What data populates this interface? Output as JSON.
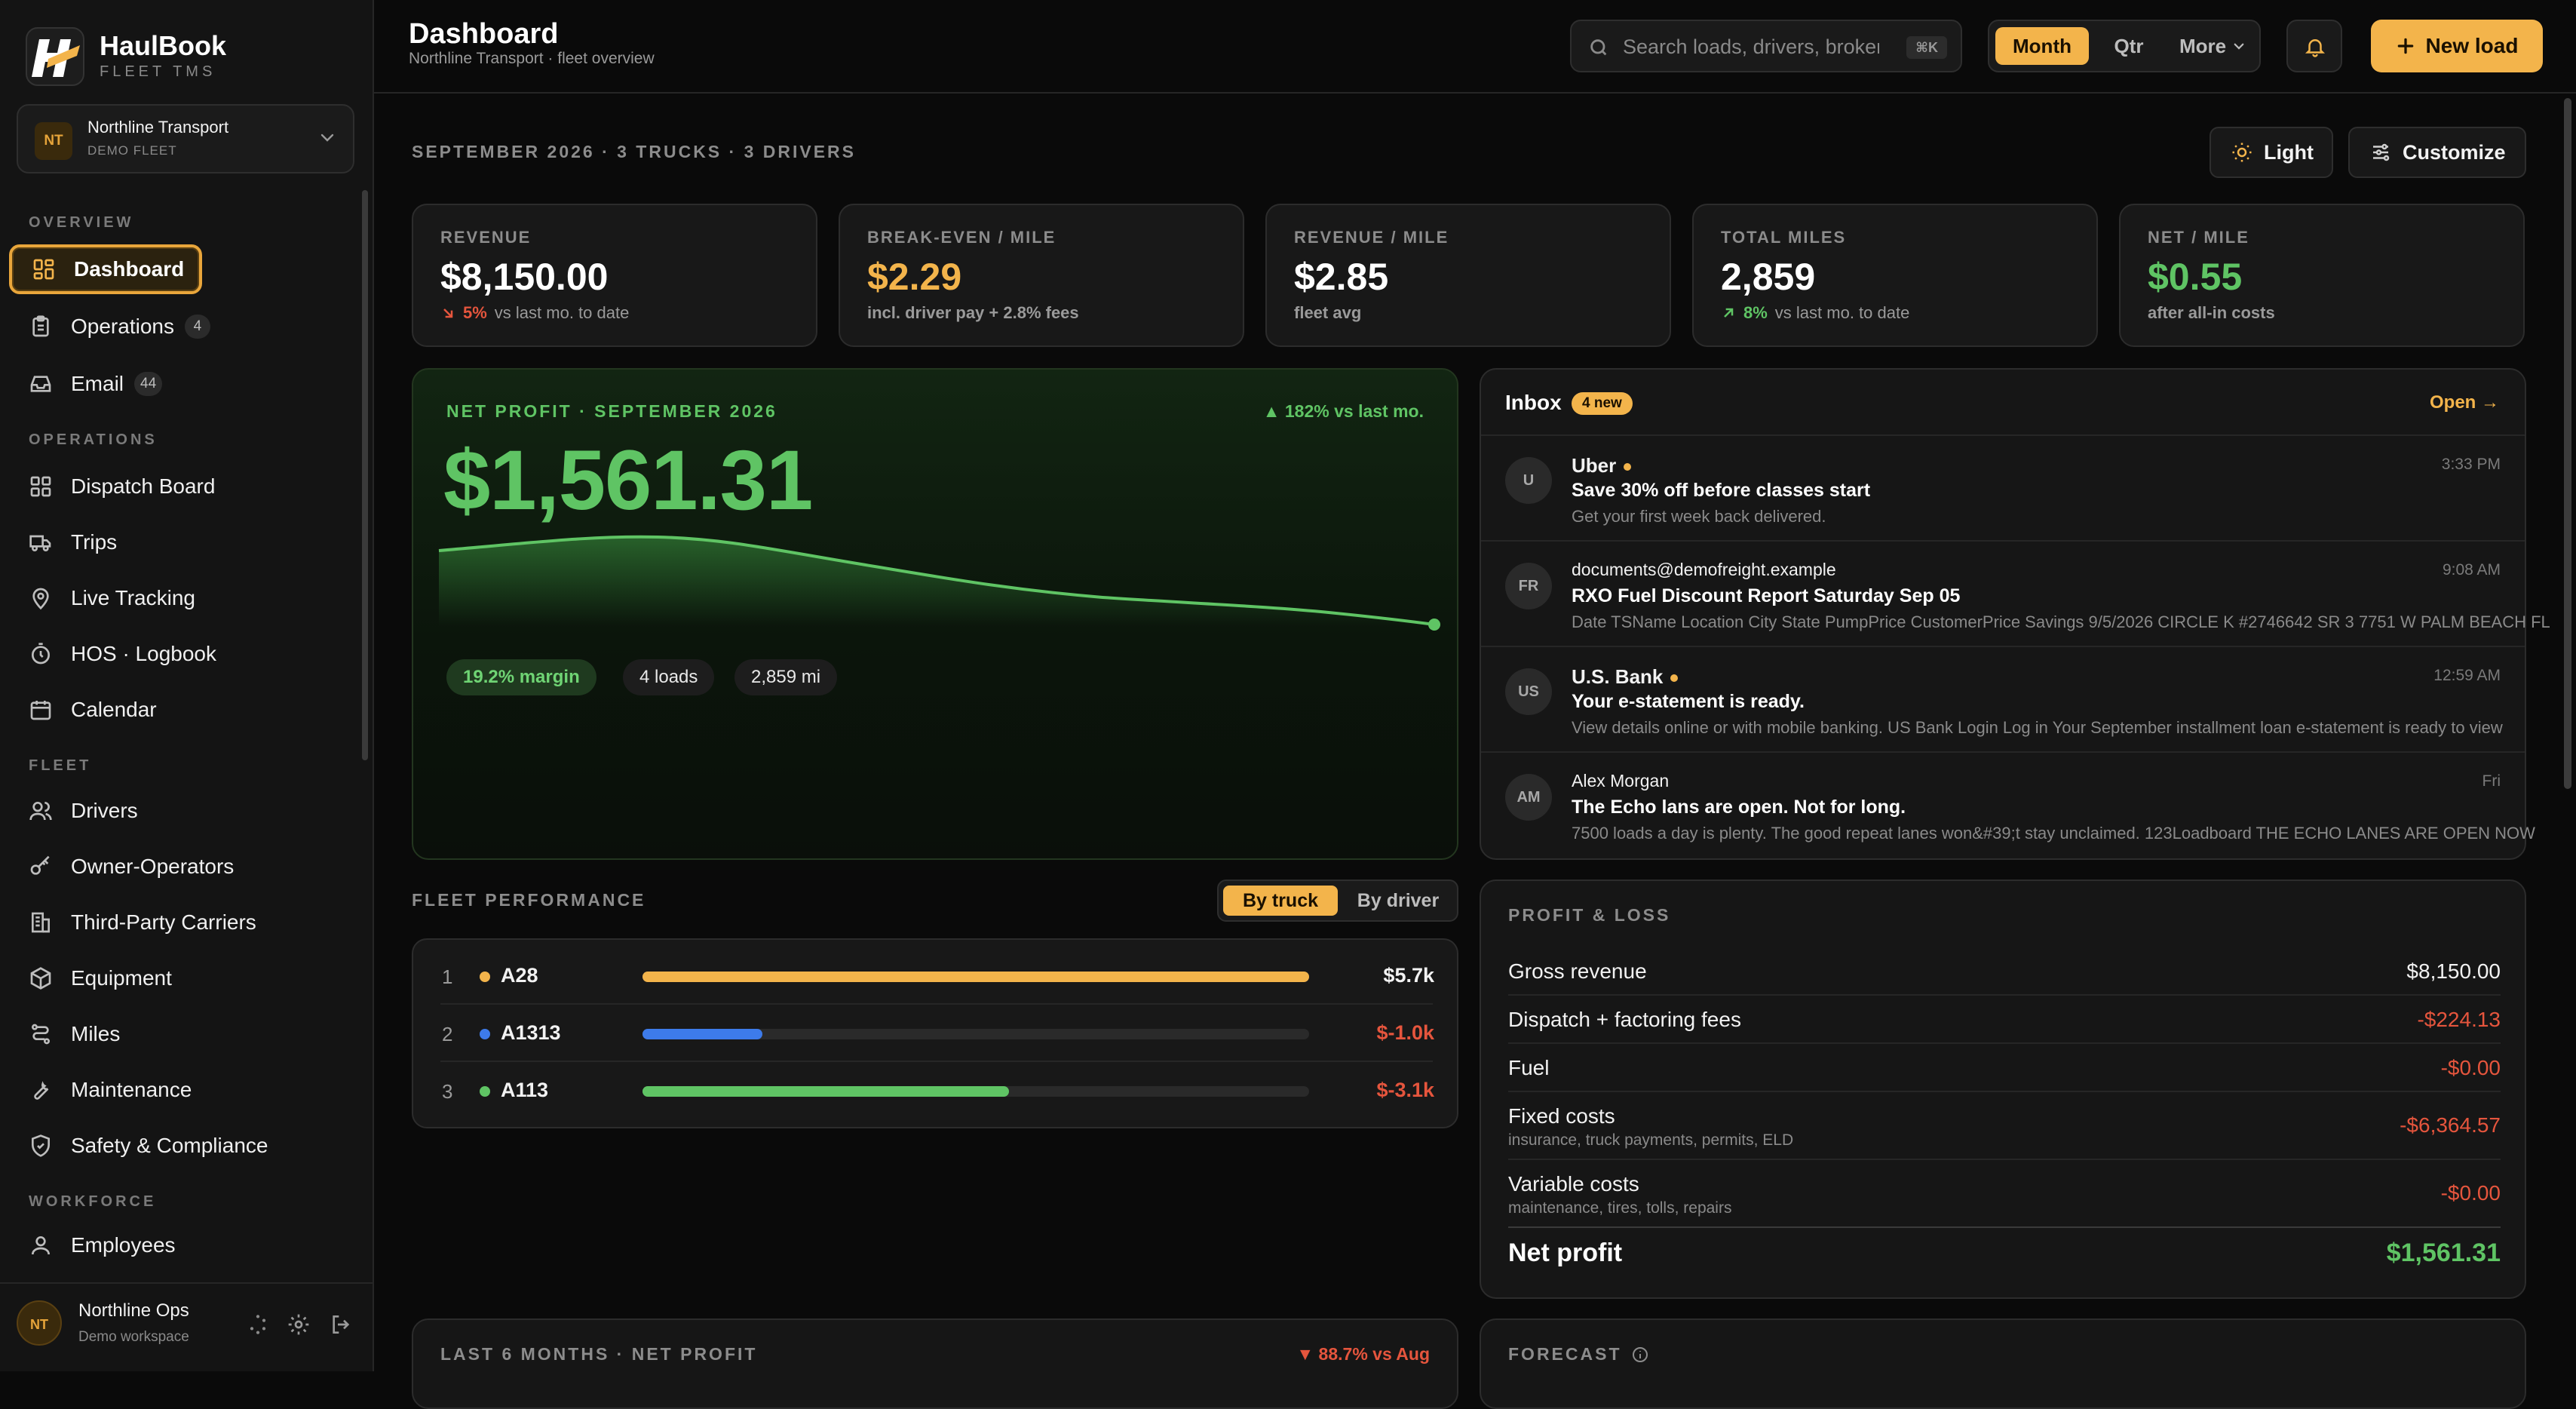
{
  "brand": {
    "name": "HaulBook",
    "sub": "FLEET TMS"
  },
  "org": {
    "initials": "NT",
    "name": "Northline Transport",
    "sub": "DEMO FLEET"
  },
  "sidebar": {
    "overview_label": "OVERVIEW",
    "operations_label": "OPERATIONS",
    "fleet_label": "FLEET",
    "workforce_label": "WORKFORCE",
    "overview": [
      {
        "label": "Dashboard",
        "icon": "grid-icon"
      },
      {
        "label": "Operations",
        "icon": "clipboard-icon",
        "count": "4"
      },
      {
        "label": "Email",
        "icon": "inbox-icon",
        "count": "44"
      }
    ],
    "operations": [
      {
        "label": "Dispatch Board",
        "icon": "grid-icon"
      },
      {
        "label": "Trips",
        "icon": "truck-icon"
      },
      {
        "label": "Live Tracking",
        "icon": "map-pin-icon"
      },
      {
        "label": "HOS · Logbook",
        "icon": "stopwatch-icon"
      },
      {
        "label": "Calendar",
        "icon": "calendar-icon"
      }
    ],
    "fleet": [
      {
        "label": "Drivers",
        "icon": "users-icon"
      },
      {
        "label": "Owner-Operators",
        "icon": "key-icon"
      },
      {
        "label": "Third-Party Carriers",
        "icon": "building-icon"
      },
      {
        "label": "Equipment",
        "icon": "box-icon"
      },
      {
        "label": "Miles",
        "icon": "route-icon"
      },
      {
        "label": "Maintenance",
        "icon": "wrench-icon"
      },
      {
        "label": "Safety & Compliance",
        "icon": "shield-icon"
      }
    ],
    "workforce": [
      {
        "label": "Employees",
        "icon": "user-icon"
      }
    ],
    "footer": {
      "initials": "NT",
      "name": "Northline Ops",
      "sub": "Demo workspace"
    }
  },
  "header": {
    "title": "Dashboard",
    "subtitle": "Northline Transport · fleet overview",
    "search_placeholder": "Search loads, drivers, brokers",
    "search_kbd": "⌘K",
    "periods": [
      "Month",
      "Qtr",
      "More"
    ],
    "new_load": "New load"
  },
  "main": {
    "period_caption": "SEPTEMBER 2026 · 3 TRUCKS · 3 DRIVERS",
    "theme_button": "Light",
    "customize_button": "Customize",
    "kpis": [
      {
        "label": "REVENUE",
        "value": "$8,150.00",
        "value_color": "#ffffff",
        "delta": "5%",
        "delta_dir": "down",
        "delta_color": "#e5553d",
        "note": "vs last mo. to date"
      },
      {
        "label": "BREAK-EVEN / MILE",
        "value": "$2.29",
        "value_color": "#f3b44b",
        "delta": "",
        "note": "incl. driver pay + 2.8% fees"
      },
      {
        "label": "REVENUE / MILE",
        "value": "$2.85",
        "value_color": "#ffffff",
        "delta": "",
        "note": "fleet avg"
      },
      {
        "label": "TOTAL MILES",
        "value": "2,859",
        "value_color": "#ffffff",
        "delta": "8%",
        "delta_dir": "up",
        "delta_color": "#5fc464",
        "note": "vs last mo. to date"
      },
      {
        "label": "NET / MILE",
        "value": "$0.55",
        "value_color": "#5fc464",
        "delta": "",
        "note": "after all-in costs"
      }
    ],
    "net_profit": {
      "caption": "NET PROFIT · SEPTEMBER 2026",
      "delta": "▲ 182% vs last mo.",
      "value": "$1,561.31",
      "margin": "19.2% margin",
      "loads": "4 loads",
      "miles": "2,859 mi"
    },
    "inbox": {
      "title": "Inbox",
      "badge": "4 new",
      "open": "Open →",
      "items": [
        {
          "initials": "U",
          "from": "Uber",
          "unread": true,
          "time": "3:33 PM",
          "subject": "Save 30% off before classes start",
          "preview": "Get your first week back delivered."
        },
        {
          "initials": "FR",
          "from": "documents@demofreight.example",
          "unread": false,
          "time": "9:08 AM",
          "subject": "RXO Fuel Discount Report Saturday Sep 05",
          "preview": "Date TSName Location City State PumpPrice CustomerPrice Savings 9/5/2026 CIRCLE K #2746642 SR 3 7751 W PALM BEACH FL"
        },
        {
          "initials": "US",
          "from": "U.S. Bank",
          "unread": true,
          "time": "12:59 AM",
          "subject": "Your e-statement is ready.",
          "preview": "View details online or with mobile banking. US Bank Login Log in Your September installment loan e-statement is ready to view"
        },
        {
          "initials": "AM",
          "from": "Alex Morgan",
          "unread": false,
          "time": "Fri",
          "subject": "The Echo lans are open. Not for long.",
          "preview": "7500 loads a day is plenty. The good repeat lanes won&#39;t stay unclaimed. 123Loadboard THE ECHO LANES ARE OPEN NOW"
        }
      ]
    },
    "fleet_performance": {
      "caption": "FLEET PERFORMANCE",
      "toggle": [
        "By truck",
        "By driver"
      ],
      "rows": [
        {
          "rank": "1",
          "name": "A28",
          "value": "$5.7k",
          "fill": 1.0,
          "color": "#f3b44b",
          "value_color": "#f2f2f2"
        },
        {
          "rank": "2",
          "name": "A1313",
          "value": "$-1.0k",
          "fill": 0.18,
          "color": "#3d7bea",
          "value_color": "#e5553d"
        },
        {
          "rank": "3",
          "name": "A113",
          "value": "$-3.1k",
          "fill": 0.55,
          "color": "#5fc464",
          "value_color": "#e5553d"
        }
      ]
    },
    "profit_loss": {
      "caption": "PROFIT & LOSS",
      "rows": [
        {
          "label": "Gross revenue",
          "sub": "",
          "value": "$8,150.00",
          "color": "#f2f2f2"
        },
        {
          "label": "Dispatch + factoring fees",
          "sub": "",
          "value": "-$224.13",
          "color": "#e5553d"
        },
        {
          "label": "Fuel",
          "sub": "",
          "value": "-$0.00",
          "color": "#e5553d"
        },
        {
          "label": "Fixed costs",
          "sub": "insurance, truck payments, permits, ELD",
          "value": "-$6,364.57",
          "color": "#e5553d"
        },
        {
          "label": "Variable costs",
          "sub": "maintenance, tires, tolls, repairs",
          "value": "-$0.00",
          "color": "#e5553d"
        }
      ],
      "total_label": "Net profit",
      "total_value": "$1,561.31"
    },
    "last6": {
      "caption": "LAST 6 MONTHS · NET PROFIT",
      "delta": "▼ 88.7% vs Aug"
    },
    "forecast": {
      "caption": "FORECAST"
    }
  }
}
